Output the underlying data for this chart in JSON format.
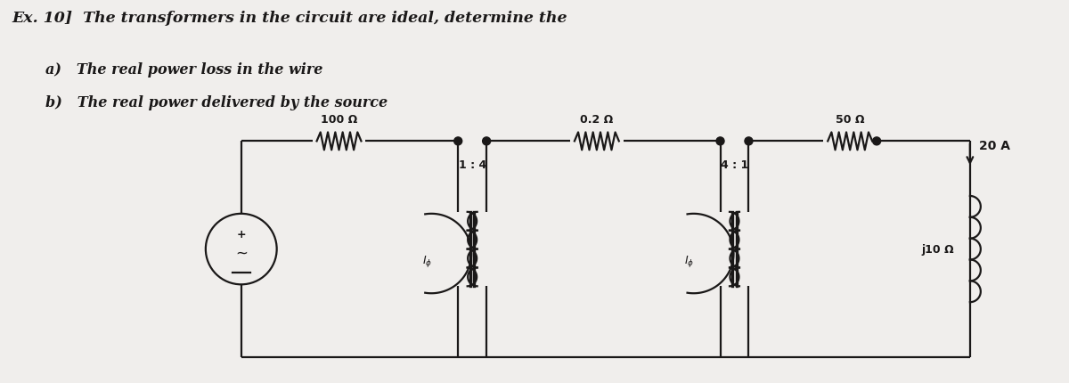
{
  "title_line1": "Ex. 10]  The transformers in the circuit are ideal, determine the",
  "item_a": "a)   The real power loss in the wire",
  "item_b": "b)   The real power delivered by the source",
  "bg_color": "#f0eeec",
  "text_color": "#1a1818",
  "resistor1_label": "100 Ω",
  "resistor2_label": "0.2 Ω",
  "resistor3_label": "50 Ω",
  "resistor4_label": "j10 Ω",
  "transformer1_ratio": "1 : 4",
  "transformer2_ratio": "4 : 1",
  "current_label": "20 A",
  "phi_label1": "I_ph1",
  "phi_label2": "I_ph2"
}
